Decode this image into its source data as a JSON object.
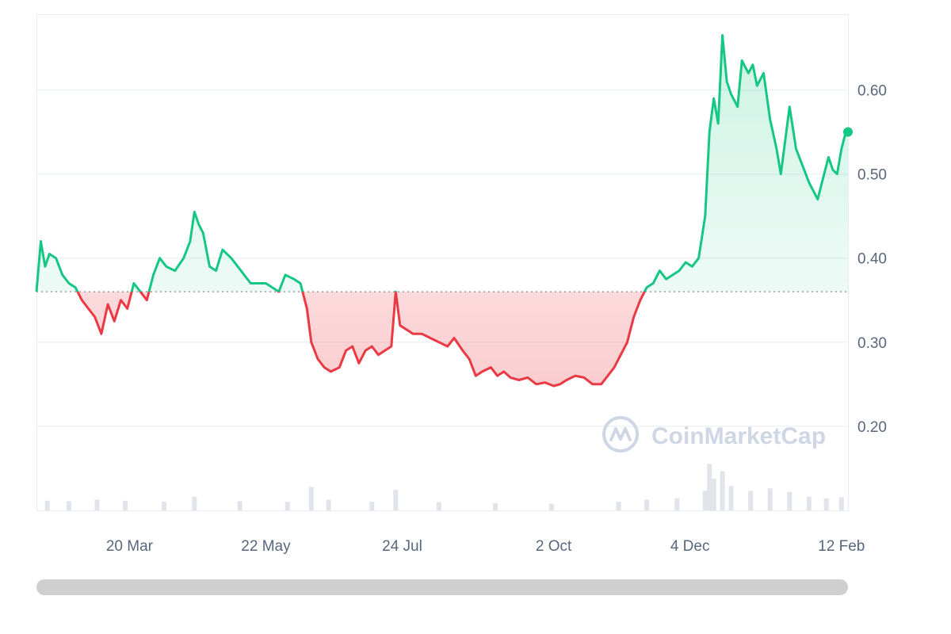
{
  "chart_data": {
    "type": "area",
    "title": "",
    "xlabel": "",
    "ylabel": "",
    "ylim": [
      0.1,
      0.69
    ],
    "yticks": [
      "0.60",
      "0.50",
      "0.40",
      "0.30",
      "0.20"
    ],
    "ytick_values": [
      0.6,
      0.5,
      0.4,
      0.3,
      0.2
    ],
    "xtick_labels": [
      "20 Mar",
      "22 May",
      "24 Jul",
      "2 Oct",
      "4 Dec",
      "12 Feb"
    ],
    "xtick_dates": [
      "2023-03-20",
      "2023-05-22",
      "2023-07-24",
      "2023-10-02",
      "2023-12-04",
      "2024-02-12"
    ],
    "x_range": [
      "2023-02-05",
      "2024-02-15"
    ],
    "baseline": 0.36,
    "colors": {
      "above": "#16c784",
      "below": "#ea3943",
      "grid": "#eff2f5",
      "baseline": "#888888",
      "volume": "#e1e4ea"
    },
    "series": [
      {
        "points": [
          [
            "2023-02-05",
            0.36
          ],
          [
            "2023-02-07",
            0.42
          ],
          [
            "2023-02-09",
            0.39
          ],
          [
            "2023-02-11",
            0.405
          ],
          [
            "2023-02-14",
            0.4
          ],
          [
            "2023-02-17",
            0.38
          ],
          [
            "2023-02-20",
            0.37
          ],
          [
            "2023-02-23",
            0.365
          ],
          [
            "2023-02-26",
            0.35
          ],
          [
            "2023-03-01",
            0.34
          ],
          [
            "2023-03-04",
            0.33
          ],
          [
            "2023-03-07",
            0.31
          ],
          [
            "2023-03-10",
            0.345
          ],
          [
            "2023-03-13",
            0.325
          ],
          [
            "2023-03-16",
            0.35
          ],
          [
            "2023-03-19",
            0.34
          ],
          [
            "2023-03-22",
            0.37
          ],
          [
            "2023-03-25",
            0.36
          ],
          [
            "2023-03-28",
            0.35
          ],
          [
            "2023-03-31",
            0.38
          ],
          [
            "2023-04-03",
            0.4
          ],
          [
            "2023-04-06",
            0.39
          ],
          [
            "2023-04-10",
            0.385
          ],
          [
            "2023-04-14",
            0.4
          ],
          [
            "2023-04-17",
            0.42
          ],
          [
            "2023-04-19",
            0.455
          ],
          [
            "2023-04-21",
            0.44
          ],
          [
            "2023-04-23",
            0.43
          ],
          [
            "2023-04-26",
            0.39
          ],
          [
            "2023-04-29",
            0.385
          ],
          [
            "2023-05-02",
            0.41
          ],
          [
            "2023-05-06",
            0.4
          ],
          [
            "2023-05-09",
            0.39
          ],
          [
            "2023-05-12",
            0.38
          ],
          [
            "2023-05-15",
            0.37
          ],
          [
            "2023-05-18",
            0.37
          ],
          [
            "2023-05-22",
            0.37
          ],
          [
            "2023-05-25",
            0.365
          ],
          [
            "2023-05-28",
            0.36
          ],
          [
            "2023-05-31",
            0.38
          ],
          [
            "2023-06-04",
            0.375
          ],
          [
            "2023-06-07",
            0.37
          ],
          [
            "2023-06-10",
            0.34
          ],
          [
            "2023-06-12",
            0.3
          ],
          [
            "2023-06-15",
            0.28
          ],
          [
            "2023-06-18",
            0.27
          ],
          [
            "2023-06-21",
            0.265
          ],
          [
            "2023-06-25",
            0.27
          ],
          [
            "2023-06-28",
            0.29
          ],
          [
            "2023-07-01",
            0.295
          ],
          [
            "2023-07-04",
            0.275
          ],
          [
            "2023-07-07",
            0.29
          ],
          [
            "2023-07-10",
            0.295
          ],
          [
            "2023-07-13",
            0.285
          ],
          [
            "2023-07-16",
            0.29
          ],
          [
            "2023-07-19",
            0.295
          ],
          [
            "2023-07-21",
            0.36
          ],
          [
            "2023-07-23",
            0.32
          ],
          [
            "2023-07-26",
            0.315
          ],
          [
            "2023-07-29",
            0.31
          ],
          [
            "2023-08-02",
            0.31
          ],
          [
            "2023-08-06",
            0.305
          ],
          [
            "2023-08-10",
            0.3
          ],
          [
            "2023-08-14",
            0.295
          ],
          [
            "2023-08-17",
            0.305
          ],
          [
            "2023-08-21",
            0.29
          ],
          [
            "2023-08-24",
            0.28
          ],
          [
            "2023-08-27",
            0.26
          ],
          [
            "2023-08-30",
            0.265
          ],
          [
            "2023-09-03",
            0.27
          ],
          [
            "2023-09-06",
            0.26
          ],
          [
            "2023-09-09",
            0.265
          ],
          [
            "2023-09-12",
            0.258
          ],
          [
            "2023-09-16",
            0.255
          ],
          [
            "2023-09-20",
            0.258
          ],
          [
            "2023-09-24",
            0.25
          ],
          [
            "2023-09-28",
            0.252
          ],
          [
            "2023-10-02",
            0.248
          ],
          [
            "2023-10-05",
            0.25
          ],
          [
            "2023-10-08",
            0.255
          ],
          [
            "2023-10-12",
            0.26
          ],
          [
            "2023-10-16",
            0.258
          ],
          [
            "2023-10-20",
            0.25
          ],
          [
            "2023-10-24",
            0.25
          ],
          [
            "2023-10-27",
            0.26
          ],
          [
            "2023-10-30",
            0.27
          ],
          [
            "2023-11-02",
            0.285
          ],
          [
            "2023-11-05",
            0.3
          ],
          [
            "2023-11-08",
            0.33
          ],
          [
            "2023-11-11",
            0.35
          ],
          [
            "2023-11-14",
            0.365
          ],
          [
            "2023-11-17",
            0.37
          ],
          [
            "2023-11-20",
            0.385
          ],
          [
            "2023-11-23",
            0.375
          ],
          [
            "2023-11-26",
            0.38
          ],
          [
            "2023-11-29",
            0.385
          ],
          [
            "2023-12-02",
            0.395
          ],
          [
            "2023-12-05",
            0.39
          ],
          [
            "2023-12-08",
            0.4
          ],
          [
            "2023-12-11",
            0.45
          ],
          [
            "2023-12-13",
            0.55
          ],
          [
            "2023-12-15",
            0.59
          ],
          [
            "2023-12-17",
            0.56
          ],
          [
            "2023-12-19",
            0.665
          ],
          [
            "2023-12-21",
            0.61
          ],
          [
            "2023-12-23",
            0.595
          ],
          [
            "2023-12-26",
            0.58
          ],
          [
            "2023-12-28",
            0.635
          ],
          [
            "2023-12-31",
            0.62
          ],
          [
            "2024-01-02",
            0.63
          ],
          [
            "2024-01-04",
            0.605
          ],
          [
            "2024-01-07",
            0.62
          ],
          [
            "2024-01-10",
            0.565
          ],
          [
            "2024-01-13",
            0.53
          ],
          [
            "2024-01-15",
            0.5
          ],
          [
            "2024-01-17",
            0.54
          ],
          [
            "2024-01-19",
            0.58
          ],
          [
            "2024-01-22",
            0.53
          ],
          [
            "2024-01-25",
            0.51
          ],
          [
            "2024-01-28",
            0.49
          ],
          [
            "2024-01-30",
            0.48
          ],
          [
            "2024-02-01",
            0.47
          ],
          [
            "2024-02-03",
            0.49
          ],
          [
            "2024-02-06",
            0.52
          ],
          [
            "2024-02-08",
            0.505
          ],
          [
            "2024-02-10",
            0.5
          ],
          [
            "2024-02-12",
            0.53
          ],
          [
            "2024-02-14",
            0.55
          ],
          [
            "2024-02-15",
            0.55
          ]
        ]
      }
    ],
    "volume": [
      [
        "2023-02-10",
        0.1
      ],
      [
        "2023-02-20",
        0.09
      ],
      [
        "2023-03-05",
        0.12
      ],
      [
        "2023-03-18",
        0.1
      ],
      [
        "2023-04-05",
        0.08
      ],
      [
        "2023-04-19",
        0.18
      ],
      [
        "2023-05-10",
        0.09
      ],
      [
        "2023-06-01",
        0.08
      ],
      [
        "2023-06-12",
        0.38
      ],
      [
        "2023-06-20",
        0.12
      ],
      [
        "2023-07-10",
        0.08
      ],
      [
        "2023-07-21",
        0.32
      ],
      [
        "2023-08-10",
        0.07
      ],
      [
        "2023-09-05",
        0.05
      ],
      [
        "2023-10-01",
        0.04
      ],
      [
        "2023-11-01",
        0.08
      ],
      [
        "2023-11-14",
        0.12
      ],
      [
        "2023-11-28",
        0.15
      ],
      [
        "2023-12-11",
        0.3
      ],
      [
        "2023-12-13",
        0.85
      ],
      [
        "2023-12-15",
        0.55
      ],
      [
        "2023-12-19",
        0.7
      ],
      [
        "2023-12-23",
        0.4
      ],
      [
        "2024-01-01",
        0.3
      ],
      [
        "2024-01-10",
        0.35
      ],
      [
        "2024-01-19",
        0.28
      ],
      [
        "2024-01-28",
        0.18
      ],
      [
        "2024-02-05",
        0.15
      ],
      [
        "2024-02-12",
        0.17
      ]
    ]
  },
  "watermark": {
    "text": "CoinMarketCap",
    "icon": "coinmarketcap-logo-icon"
  },
  "scrollbar": {
    "label": "chart range scrollbar"
  }
}
